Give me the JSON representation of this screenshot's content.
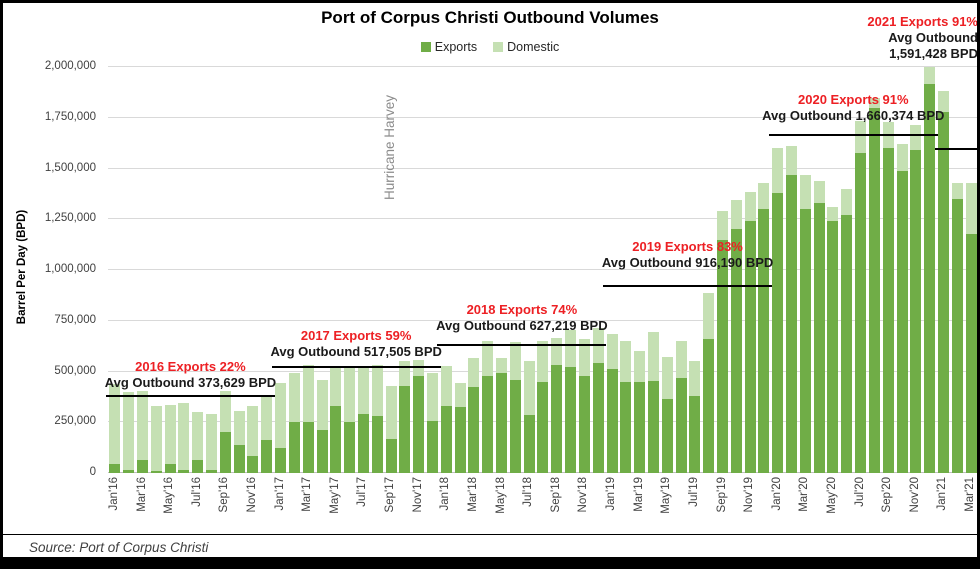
{
  "header": {
    "title": "Port of Corpus Christi Outbound Volumes"
  },
  "legend": {
    "items": [
      {
        "label": "Exports",
        "color": "#70ad47"
      },
      {
        "label": "Domestic",
        "color": "#c5e0b3"
      }
    ]
  },
  "y_axis": {
    "label": "Barrel Per Day (BPD)",
    "ticks": [
      0,
      250000,
      500000,
      750000,
      1000000,
      1250000,
      1500000,
      1750000,
      2000000
    ]
  },
  "source": {
    "text": "Source: Port of Corpus Christi"
  },
  "chart_data": {
    "type": "bar",
    "stacked": true,
    "title": "Port of Corpus Christi Outbound Volumes",
    "ylabel": "Barrel Per Day (BPD)",
    "ylim": [
      0,
      2000000
    ],
    "grid": true,
    "legend_position": "top-center",
    "series_names": [
      "Exports",
      "Domestic"
    ],
    "colors": {
      "exports": "#70ad47",
      "domestic": "#c5e0b3",
      "annotation_red": "#ed2024",
      "annotation_black": "#1a1a1a",
      "grid": "#d9d9d9",
      "axis_text": "#404040",
      "note_gray": "#8c8c8c"
    },
    "months": [
      {
        "label": "Jan'16",
        "exports": 45000,
        "domestic": 395000
      },
      {
        "label": "Feb'16",
        "exports": 15000,
        "domestic": 385000
      },
      {
        "label": "Mar'16",
        "exports": 65000,
        "domestic": 340000
      },
      {
        "label": "Apr'16",
        "exports": 10000,
        "domestic": 320000
      },
      {
        "label": "May'16",
        "exports": 45000,
        "domestic": 290000
      },
      {
        "label": "Jun'16",
        "exports": 15000,
        "domestic": 330000
      },
      {
        "label": "Jul'16",
        "exports": 65000,
        "domestic": 235000
      },
      {
        "label": "Aug'16",
        "exports": 15000,
        "domestic": 275000
      },
      {
        "label": "Sep'16",
        "exports": 200000,
        "domestic": 205000
      },
      {
        "label": "Oct'16",
        "exports": 140000,
        "domestic": 165000
      },
      {
        "label": "Nov'16",
        "exports": 85000,
        "domestic": 245000
      },
      {
        "label": "Dec'16",
        "exports": 165000,
        "domestic": 220000
      },
      {
        "label": "Jan'17",
        "exports": 125000,
        "domestic": 320000
      },
      {
        "label": "Feb'17",
        "exports": 250000,
        "domestic": 245000
      },
      {
        "label": "Mar'17",
        "exports": 250000,
        "domestic": 280000
      },
      {
        "label": "Apr'17",
        "exports": 210000,
        "domestic": 250000
      },
      {
        "label": "May'17",
        "exports": 330000,
        "domestic": 195000
      },
      {
        "label": "Jun'17",
        "exports": 250000,
        "domestic": 265000
      },
      {
        "label": "Jul'17",
        "exports": 290000,
        "domestic": 230000
      },
      {
        "label": "Aug'17",
        "exports": 280000,
        "domestic": 250000
      },
      {
        "label": "Sep'17",
        "exports": 170000,
        "domestic": 260000
      },
      {
        "label": "Oct'17",
        "exports": 430000,
        "domestic": 120000
      },
      {
        "label": "Nov'17",
        "exports": 480000,
        "domestic": 75000
      },
      {
        "label": "Dec'17",
        "exports": 255000,
        "domestic": 240000
      },
      {
        "label": "Jan'18",
        "exports": 330000,
        "domestic": 195000
      },
      {
        "label": "Feb'18",
        "exports": 325000,
        "domestic": 120000
      },
      {
        "label": "Mar'18",
        "exports": 425000,
        "domestic": 140000
      },
      {
        "label": "Apr'18",
        "exports": 480000,
        "domestic": 170000
      },
      {
        "label": "May'18",
        "exports": 495000,
        "domestic": 70000
      },
      {
        "label": "Jun'18",
        "exports": 460000,
        "domestic": 185000
      },
      {
        "label": "Jul'18",
        "exports": 285000,
        "domestic": 265000
      },
      {
        "label": "Aug'18",
        "exports": 450000,
        "domestic": 200000
      },
      {
        "label": "Sep'18",
        "exports": 530000,
        "domestic": 135000
      },
      {
        "label": "Oct'18",
        "exports": 520000,
        "domestic": 185000
      },
      {
        "label": "Nov'18",
        "exports": 480000,
        "domestic": 180000
      },
      {
        "label": "Dec'18",
        "exports": 540000,
        "domestic": 175000
      },
      {
        "label": "Jan'19",
        "exports": 510000,
        "domestic": 175000
      },
      {
        "label": "Feb'19",
        "exports": 450000,
        "domestic": 200000
      },
      {
        "label": "Mar'19",
        "exports": 450000,
        "domestic": 150000
      },
      {
        "label": "Apr'19",
        "exports": 455000,
        "domestic": 240000
      },
      {
        "label": "May'19",
        "exports": 365000,
        "domestic": 205000
      },
      {
        "label": "Jun'19",
        "exports": 470000,
        "domestic": 180000
      },
      {
        "label": "Jul'19",
        "exports": 380000,
        "domestic": 170000
      },
      {
        "label": "Aug'19",
        "exports": 660000,
        "domestic": 225000
      },
      {
        "label": "Sep'19",
        "exports": 1150000,
        "domestic": 140000
      },
      {
        "label": "Oct'19",
        "exports": 1200000,
        "domestic": 145000
      },
      {
        "label": "Nov'19",
        "exports": 1240000,
        "domestic": 145000
      },
      {
        "label": "Dec'19",
        "exports": 1300000,
        "domestic": 130000
      },
      {
        "label": "Jan'20",
        "exports": 1380000,
        "domestic": 220000
      },
      {
        "label": "Feb'20",
        "exports": 1470000,
        "domestic": 140000
      },
      {
        "label": "Mar'20",
        "exports": 1300000,
        "domestic": 170000
      },
      {
        "label": "Apr'20",
        "exports": 1330000,
        "domestic": 110000
      },
      {
        "label": "May'20",
        "exports": 1240000,
        "domestic": 70000
      },
      {
        "label": "Jun'20",
        "exports": 1270000,
        "domestic": 130000
      },
      {
        "label": "Jul'20",
        "exports": 1575000,
        "domestic": 160000
      },
      {
        "label": "Aug'20",
        "exports": 1800000,
        "domestic": 45000
      },
      {
        "label": "Sep'20",
        "exports": 1600000,
        "domestic": 130000
      },
      {
        "label": "Oct'20",
        "exports": 1490000,
        "domestic": 130000
      },
      {
        "label": "Nov'20",
        "exports": 1590000,
        "domestic": 125000
      },
      {
        "label": "Dec'20",
        "exports": 1915000,
        "domestic": 85000
      },
      {
        "label": "Jan'21",
        "exports": 1780000,
        "domestic": 100000
      },
      {
        "label": "Feb'21",
        "exports": 1350000,
        "domestic": 80000
      },
      {
        "label": "Mar'21",
        "exports": 1175000,
        "domestic": 255000
      }
    ],
    "annotations": [
      {
        "red_label": "2016 Exports 22%",
        "avg_lines": [
          "Avg Outbound 373,629 BPD"
        ],
        "avg_bpd": 373629,
        "from_month": 0,
        "to_month": 11,
        "text_gap": 6,
        "align": "center"
      },
      {
        "red_label": "2017 Exports 59%",
        "avg_lines": [
          "Avg Outbound 517,505 BPD"
        ],
        "avg_bpd": 517505,
        "from_month": 12,
        "to_month": 23,
        "text_gap": 8,
        "align": "center"
      },
      {
        "red_label": "2018 Exports 74%",
        "avg_lines": [
          "Avg Outbound 627,219 BPD"
        ],
        "avg_bpd": 627219,
        "from_month": 24,
        "to_month": 35,
        "text_gap": 12,
        "align": "center"
      },
      {
        "red_label": "2019 Exports 83%",
        "avg_lines": [
          "Avg Outbound 916,190 BPD"
        ],
        "avg_bpd": 916190,
        "from_month": 36,
        "to_month": 47,
        "text_gap": 16,
        "align": "center"
      },
      {
        "red_label": "2020 Exports 91%",
        "avg_lines": [
          "Avg Outbound 1,660,374 BPD"
        ],
        "avg_bpd": 1660374,
        "from_month": 48,
        "to_month": 59,
        "text_gap": 12,
        "align": "center"
      },
      {
        "red_label": "2021 Exports 91%",
        "avg_lines": [
          "Avg Outbound",
          "1,591,428 BPD"
        ],
        "avg_bpd": 1591428,
        "from_month": 60,
        "to_month": 62,
        "text_gap": 88,
        "align": "right"
      }
    ],
    "hurricane_note": {
      "label": "Hurricane Harvey",
      "month_index": 20
    }
  }
}
